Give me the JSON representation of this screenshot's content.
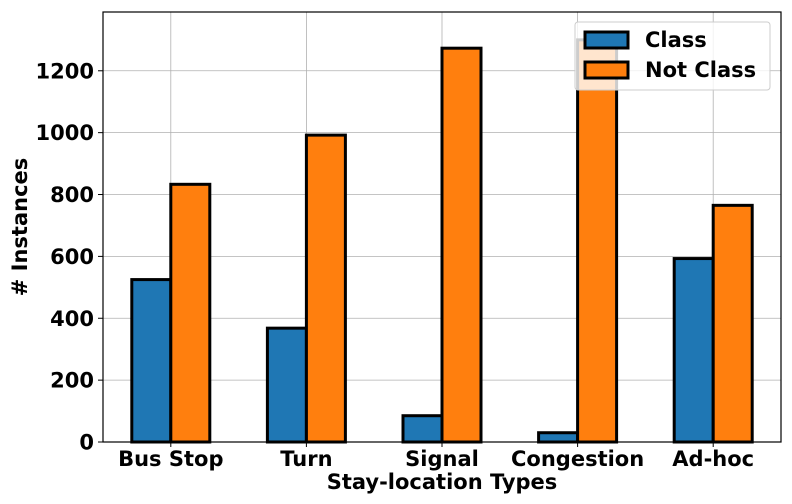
{
  "chart_data": {
    "type": "bar",
    "title": "",
    "xlabel": "Stay-location Types",
    "ylabel": "# Instances",
    "categories": [
      "Bus Stop",
      "Turn",
      "Signal",
      "Congestion",
      "Ad-hoc"
    ],
    "series": [
      {
        "name": "Class",
        "values": [
          525,
          368,
          85,
          30,
          593
        ],
        "color": "#1f77b4"
      },
      {
        "name": "Not Class",
        "values": [
          833,
          992,
          1273,
          1300,
          765
        ],
        "color": "#ff7f0e"
      }
    ],
    "ylim": [
      0,
      1390
    ],
    "yticks": [
      0,
      200,
      400,
      600,
      800,
      1000,
      1200
    ],
    "grid": true,
    "legend_position": "top-right"
  }
}
